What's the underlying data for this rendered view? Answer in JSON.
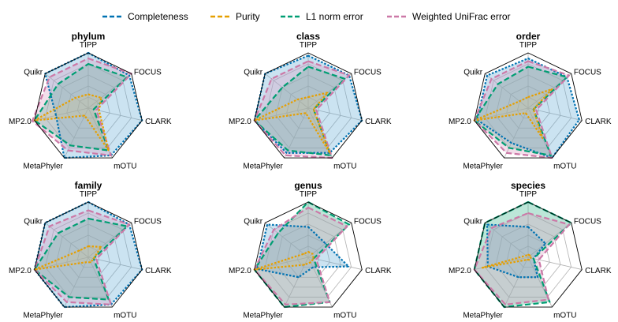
{
  "legend": [
    {
      "key": "completeness",
      "label": "Completeness",
      "color": "#0072b2",
      "dash": "short",
      "fill": "#6baed6"
    },
    {
      "key": "purity",
      "label": "Purity",
      "color": "#e69f00",
      "dash": "short",
      "fill": "#f0c060"
    },
    {
      "key": "l1",
      "label": "L1 norm error",
      "color": "#009e73",
      "dash": "long",
      "fill": "#40b890"
    },
    {
      "key": "unifrac",
      "label": "Weighted UniFrac error",
      "color": "#cc79a7",
      "dash": "long",
      "fill": "#d9a0c4"
    }
  ],
  "colors": {
    "frame": "#000000",
    "grid": "#b0b0b0",
    "highlight_label": "#e41a1c"
  },
  "chart_data": [
    {
      "type": "radar",
      "title": "phylum",
      "axes": [
        "TIPP",
        "FOCUS",
        "CLARK",
        "mOTU",
        "MetaPhyler",
        "MP2.0",
        "Quikr"
      ],
      "highlight_axes": [],
      "rmax": 1.0,
      "series": [
        {
          "key": "completeness",
          "values": [
            1.0,
            0.95,
            1.0,
            0.95,
            1.0,
            0.6,
            1.0
          ]
        },
        {
          "key": "l1",
          "values": [
            0.8,
            0.9,
            0.1,
            0.85,
            0.75,
            1.0,
            0.7
          ]
        },
        {
          "key": "unifrac",
          "values": [
            0.9,
            1.0,
            0.15,
            0.95,
            0.85,
            1.05,
            0.9
          ]
        },
        {
          "key": "purity",
          "values": [
            0.25,
            0.3,
            0.2,
            0.85,
            0.15,
            1.0,
            0.3
          ]
        }
      ]
    },
    {
      "type": "radar",
      "title": "class",
      "axes": [
        "TIPP",
        "FOCUS",
        "CLARK",
        "mOTU",
        "MetaPhyler",
        "MP2.0",
        "Quikr"
      ],
      "highlight_axes": [],
      "rmax": 1.0,
      "series": [
        {
          "key": "completeness",
          "values": [
            0.95,
            0.95,
            1.0,
            0.9,
            0.9,
            1.0,
            1.0
          ]
        },
        {
          "key": "l1",
          "values": [
            0.75,
            0.85,
            0.1,
            0.95,
            0.85,
            1.0,
            0.6
          ]
        },
        {
          "key": "unifrac",
          "values": [
            0.85,
            0.95,
            0.15,
            1.0,
            0.95,
            1.0,
            0.85
          ]
        },
        {
          "key": "purity",
          "values": [
            0.2,
            0.45,
            0.1,
            0.9,
            0.1,
            1.0,
            0.25
          ]
        }
      ]
    },
    {
      "type": "radar",
      "title": "order",
      "axes": [
        "TIPP",
        "FOCUS",
        "CLARK",
        "mOTU",
        "MetaPhyler",
        "MP2.0",
        "Quikr"
      ],
      "highlight_axes": [],
      "rmax": 1.0,
      "series": [
        {
          "key": "completeness",
          "values": [
            0.9,
            0.9,
            0.95,
            1.0,
            0.7,
            0.95,
            0.95
          ]
        },
        {
          "key": "l1",
          "values": [
            0.75,
            0.9,
            0.1,
            0.95,
            0.8,
            1.0,
            0.7
          ]
        },
        {
          "key": "unifrac",
          "values": [
            0.85,
            0.95,
            0.15,
            1.0,
            0.9,
            1.0,
            0.85
          ]
        },
        {
          "key": "purity",
          "values": [
            0.2,
            0.55,
            0.1,
            0.6,
            0.1,
            1.0,
            0.2
          ]
        }
      ]
    },
    {
      "type": "radar",
      "title": "family",
      "axes": [
        "TIPP",
        "FOCUS",
        "CLARK",
        "mOTU",
        "MetaPhyler",
        "MP2.0",
        "Quikr"
      ],
      "highlight_axes": [],
      "rmax": 1.0,
      "series": [
        {
          "key": "completeness",
          "values": [
            1.0,
            0.95,
            1.0,
            0.95,
            1.0,
            1.0,
            1.0
          ]
        },
        {
          "key": "l1",
          "values": [
            0.7,
            0.9,
            0.1,
            0.85,
            0.8,
            1.0,
            0.7
          ]
        },
        {
          "key": "unifrac",
          "values": [
            0.85,
            0.95,
            0.15,
            0.95,
            0.9,
            1.0,
            0.9
          ]
        },
        {
          "key": "purity",
          "values": [
            0.2,
            0.3,
            0.1,
            0.1,
            0.1,
            1.0,
            0.2
          ]
        }
      ]
    },
    {
      "type": "radar",
      "title": "genus",
      "axes": [
        "TIPP",
        "FOCUS",
        "CLARK",
        "mOTU",
        "MetaPhyler",
        "MP2.0",
        "Quikr"
      ],
      "highlight_axes": [],
      "rmax": 1.0,
      "series": [
        {
          "key": "completeness",
          "values": [
            0.55,
            0.4,
            0.75,
            0.2,
            0.4,
            0.95,
            0.95
          ]
        },
        {
          "key": "l1",
          "values": [
            1.0,
            0.95,
            0.1,
            0.9,
            1.0,
            1.0,
            0.7
          ]
        },
        {
          "key": "unifrac",
          "values": [
            0.9,
            0.9,
            0.15,
            0.9,
            0.95,
            1.0,
            0.8
          ]
        },
        {
          "key": "purity",
          "values": [
            0.1,
            0.1,
            0.1,
            0.1,
            0.15,
            1.0,
            0.1
          ]
        }
      ]
    },
    {
      "type": "radar",
      "title": "species",
      "axes": [
        "TIPP",
        "FOCUS",
        "CLARK",
        "mOTU",
        "MetaPhyler",
        "MP2.0",
        "Quikr"
      ],
      "highlight_axes": [
        "CLARK"
      ],
      "rmax": 1.0,
      "series": [
        {
          "key": "completeness",
          "values": [
            0.55,
            0.4,
            0.1,
            0.4,
            0.4,
            0.75,
            0.95
          ]
        },
        {
          "key": "l1",
          "values": [
            1.0,
            1.0,
            0.1,
            0.9,
            1.0,
            1.0,
            1.0
          ]
        },
        {
          "key": "unifrac",
          "values": [
            0.8,
            0.95,
            0.2,
            0.85,
            0.95,
            1.0,
            0.85
          ]
        },
        {
          "key": "purity",
          "values": [
            0.05,
            0.05,
            0.05,
            0.05,
            0.05,
            0.85,
            0.05
          ]
        }
      ]
    }
  ]
}
